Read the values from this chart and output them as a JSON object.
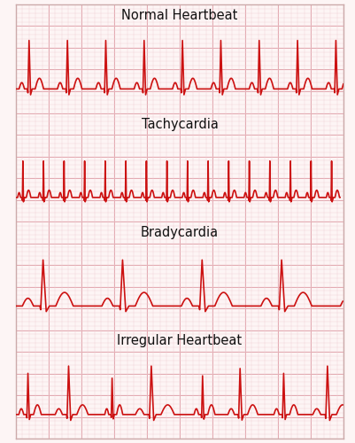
{
  "panels": [
    {
      "label": "Normal Heartbeat",
      "type": "normal"
    },
    {
      "label": "Tachycardia",
      "type": "tachycardia"
    },
    {
      "label": "Bradycardia",
      "type": "bradycardia"
    },
    {
      "label": "Irregular Heartbeat",
      "type": "irregular"
    }
  ],
  "ecg_color": "#cc1111",
  "grid_major_color": "#e0a0a8",
  "grid_minor_color": "#f0d0d4",
  "bg_color": "#fdf5f5",
  "line_width": 1.2,
  "label_fontsize": 10.5
}
